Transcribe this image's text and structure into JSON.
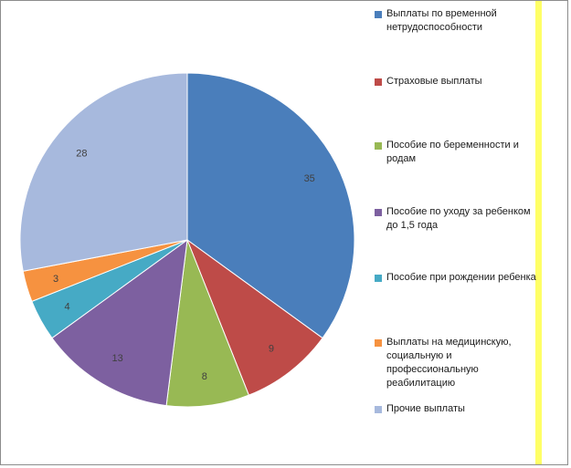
{
  "chart_data": {
    "type": "pie",
    "title": "",
    "start_angle_deg": 0,
    "direction": "clockwise",
    "legend_position": "right",
    "slices": [
      {
        "label": "Выплаты по временной нетрудоспособности",
        "value": 35,
        "color": "#4a7ebb"
      },
      {
        "label": "Страховые выплаты",
        "value": 9,
        "color": "#be4b48"
      },
      {
        "label": "Пособие по беременности и родам",
        "value": 8,
        "color": "#98b954"
      },
      {
        "label": "Пособие по уходу за ребенком до 1,5 года",
        "value": 13,
        "color": "#7d60a0"
      },
      {
        "label": "Пособие при рождении ребенка",
        "value": 4,
        "color": "#46aac5"
      },
      {
        "label": "Выплаты на медицинскую, социальную и профессиональную реабилитацию",
        "value": 3,
        "color": "#f69240"
      },
      {
        "label": "Прочие выплаты",
        "value": 28,
        "color": "#a7b9dd"
      }
    ]
  },
  "legend": {
    "lines": [
      [
        "Выплаты по временной",
        "нетрудоспособности"
      ],
      [
        "Страховые выплаты"
      ],
      [
        "Пособие по беременности и",
        "родам"
      ],
      [
        "Пособие по уходу за ребенком",
        "до 1,5 года"
      ],
      [
        "Пособие при рождении ребенка"
      ],
      [
        "Выплаты на медицинскую,",
        "социальную и",
        "профессиональную",
        "реабилитацию"
      ],
      [
        "Прочие выплаты"
      ]
    ]
  }
}
